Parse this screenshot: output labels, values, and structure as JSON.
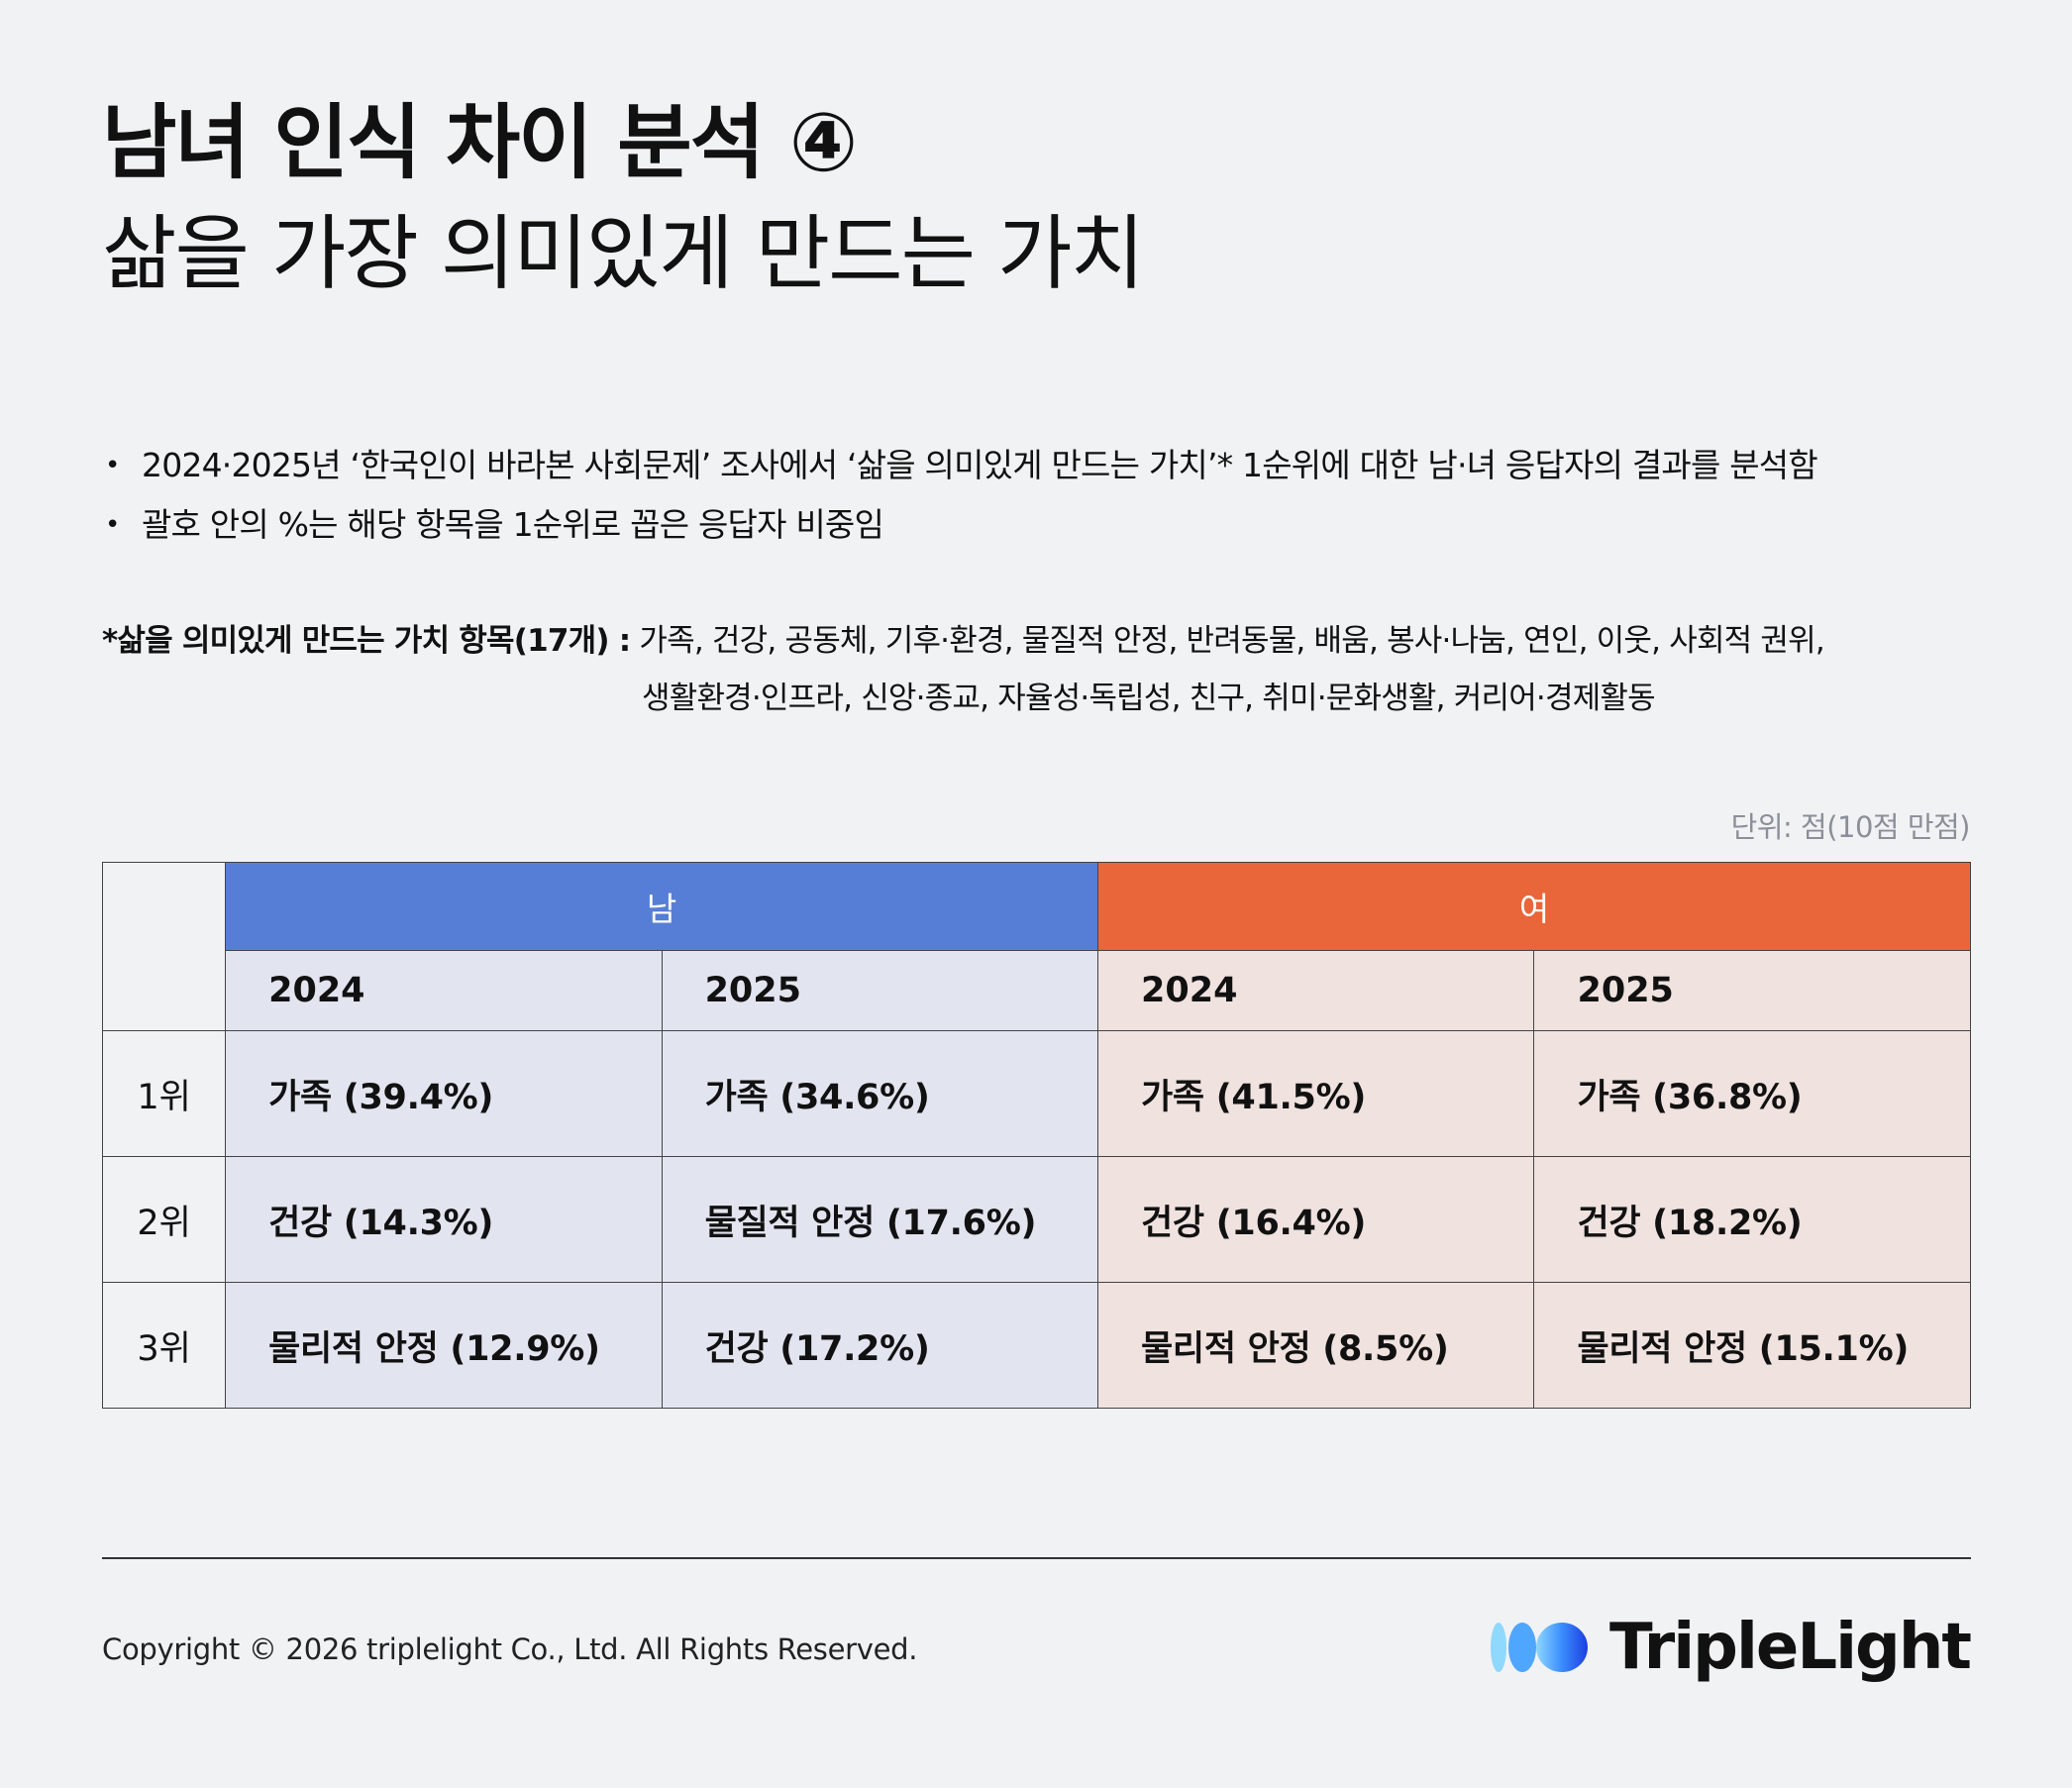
{
  "title": {
    "line1": "남녀 인식 차이 분석 ④",
    "line2": "삶을 가장 의미있게 만드는 가치"
  },
  "bullets": [
    "2024·2025년 ‘한국인이 바라본 사회문제’ 조사에서 ‘삶을 의미있게 만드는 가치’* 1순위에 대한 남·녀 응답자의 결과를 분석함",
    "괄호 안의 %는 해당 항목을 1순위로 꼽은 응답자 비중임"
  ],
  "items_note": {
    "label": "*삶을 의미있게 만드는 가치 항목(17개) :",
    "line1": " 가족, 건강, 공동체, 기후·환경, 물질적 안정, 반려동물, 배움, 봉사·나눔, 연인, 이웃, 사회적 권위,",
    "line2": "생활환경·인프라, 신앙·종교, 자율성·독립성, 친구, 취미·문화생활, 커리어·경제활동"
  },
  "unit": "단위: 점(10점 만점)",
  "table": {
    "male_header": "남",
    "female_header": "여",
    "years": [
      "2024",
      "2025",
      "2024",
      "2025"
    ],
    "rows": [
      {
        "rank": "1위",
        "cells": [
          "가족 (39.4%)",
          "가족 (34.6%)",
          "가족 (41.5%)",
          "가족 (36.8%)"
        ]
      },
      {
        "rank": "2위",
        "cells": [
          "건강 (14.3%)",
          "물질적 안정 (17.6%)",
          "건강 (16.4%)",
          "건강 (18.2%)"
        ]
      },
      {
        "rank": "3위",
        "cells": [
          "물리적 안정 (12.9%)",
          "건강 (17.2%)",
          "물리적 안정 (8.5%)",
          "물리적 안정 (15.1%)"
        ]
      }
    ]
  },
  "footer": {
    "copyright": "Copyright © 2026 triplelight Co., Ltd. All Rights Reserved.",
    "brand": "TripleLight"
  },
  "colors": {
    "male": "#577ed6",
    "female": "#e8663a",
    "male_bg": "#e2e5f0",
    "female_bg": "#efe2df"
  }
}
